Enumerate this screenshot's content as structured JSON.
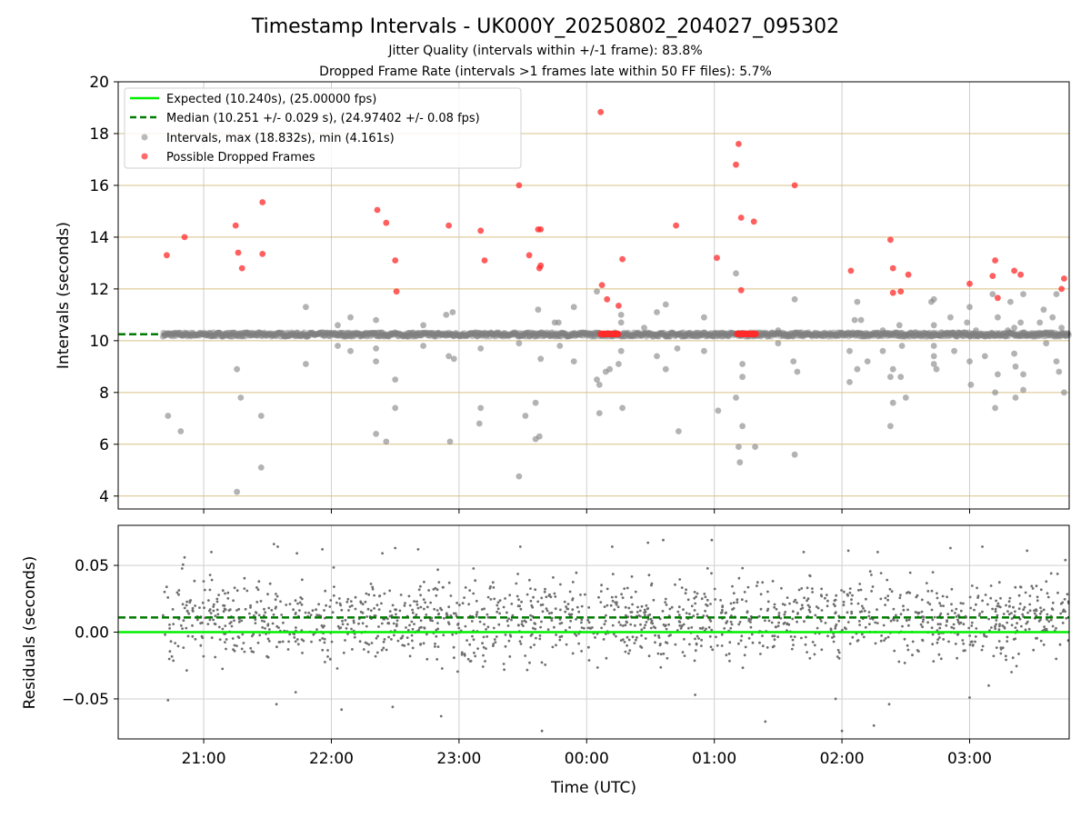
{
  "title": "Timestamp Intervals - UK000Y_20250802_204027_095302",
  "subtitle_1": "Jitter Quality (intervals within +/-1 frame): 83.8%",
  "subtitle_2": "Dropped Frame Rate (intervals >1 frames late within 50 FF files): 5.7%",
  "colors": {
    "expected": "#00ee00",
    "median": "#007a00",
    "intervals": "#808080",
    "dropped": "#ff2a2a",
    "hgrid_top": "#d6c184",
    "grid": "#cfcfcf",
    "residual_points": "#6e6e6e"
  },
  "chart_data": [
    {
      "type": "scatter",
      "ylabel": "Intervals (seconds)",
      "ylim": [
        3.5,
        20
      ],
      "y_ticks": [
        "4",
        "6",
        "8",
        "10",
        "12",
        "14",
        "16",
        "18",
        "20"
      ],
      "y_tick_values": [
        4,
        6,
        8,
        10,
        12,
        14,
        16,
        18,
        20
      ],
      "x_ticks": [
        "21:00",
        "22:00",
        "23:00",
        "00:00",
        "01:00",
        "02:00",
        "03:00"
      ],
      "xlim_hours": [
        20.33,
        27.78
      ],
      "grid": true,
      "legend_position": "top-left",
      "legend": [
        "Expected (10.240s), (25.00000 fps)",
        "Median (10.251 +/- 0.029 s), (24.97402 +/- 0.08 fps)",
        "Intervals, max (18.832s), min (4.161s)",
        "Possible Dropped Frames"
      ],
      "expected_interval": 10.24,
      "median_interval": 10.251,
      "series": [
        {
          "name": "Intervals, max (18.832s), min (4.161s)",
          "points": [
            [
              20.72,
              7.1
            ],
            [
              20.82,
              6.5
            ],
            [
              21.26,
              8.9
            ],
            [
              21.26,
              4.16
            ],
            [
              21.29,
              7.8
            ],
            [
              21.45,
              7.1
            ],
            [
              21.45,
              5.1
            ],
            [
              21.8,
              11.3
            ],
            [
              21.8,
              9.1
            ],
            [
              22.05,
              10.6
            ],
            [
              22.05,
              9.8
            ],
            [
              22.15,
              10.9
            ],
            [
              22.15,
              9.6
            ],
            [
              22.35,
              10.8
            ],
            [
              22.35,
              9.7
            ],
            [
              22.35,
              9.2
            ],
            [
              22.35,
              6.4
            ],
            [
              22.43,
              6.1
            ],
            [
              22.5,
              8.5
            ],
            [
              22.5,
              7.4
            ],
            [
              22.72,
              10.6
            ],
            [
              22.72,
              9.8
            ],
            [
              22.9,
              11.0
            ],
            [
              22.92,
              9.4
            ],
            [
              22.93,
              6.1
            ],
            [
              22.95,
              11.1
            ],
            [
              22.96,
              9.3
            ],
            [
              23.17,
              7.4
            ],
            [
              23.16,
              6.8
            ],
            [
              23.17,
              9.7
            ],
            [
              23.47,
              9.9
            ],
            [
              23.47,
              4.76
            ],
            [
              23.52,
              7.1
            ],
            [
              23.6,
              7.6
            ],
            [
              23.6,
              6.2
            ],
            [
              23.62,
              11.2
            ],
            [
              23.63,
              6.3
            ],
            [
              23.64,
              9.3
            ],
            [
              23.75,
              10.7
            ],
            [
              23.78,
              10.7
            ],
            [
              23.79,
              9.8
            ],
            [
              23.9,
              11.3
            ],
            [
              23.9,
              9.2
            ],
            [
              24.08,
              11.9
            ],
            [
              24.08,
              8.5
            ],
            [
              24.1,
              8.3
            ],
            [
              24.1,
              7.2
            ],
            [
              24.15,
              8.8
            ],
            [
              24.18,
              8.9
            ],
            [
              24.25,
              9.1
            ],
            [
              24.27,
              11.0
            ],
            [
              24.27,
              10.7
            ],
            [
              24.27,
              9.6
            ],
            [
              24.28,
              7.4
            ],
            [
              24.45,
              10.5
            ],
            [
              24.55,
              11.1
            ],
            [
              24.55,
              9.4
            ],
            [
              24.62,
              11.4
            ],
            [
              24.62,
              8.9
            ],
            [
              24.71,
              9.7
            ],
            [
              24.72,
              6.5
            ],
            [
              24.92,
              10.9
            ],
            [
              24.92,
              9.6
            ],
            [
              25.03,
              7.3
            ],
            [
              25.17,
              12.6
            ],
            [
              25.17,
              7.8
            ],
            [
              25.19,
              5.9
            ],
            [
              25.2,
              5.3
            ],
            [
              25.22,
              9.1
            ],
            [
              25.22,
              8.6
            ],
            [
              25.22,
              6.7
            ],
            [
              25.32,
              5.9
            ],
            [
              25.5,
              10.4
            ],
            [
              25.5,
              9.9
            ],
            [
              25.62,
              9.2
            ],
            [
              25.63,
              11.6
            ],
            [
              25.63,
              5.6
            ],
            [
              25.65,
              8.8
            ],
            [
              26.06,
              9.6
            ],
            [
              26.06,
              8.4
            ],
            [
              26.1,
              10.8
            ],
            [
              26.12,
              11.5
            ],
            [
              26.12,
              8.9
            ],
            [
              26.15,
              10.8
            ],
            [
              26.2,
              9.2
            ],
            [
              26.32,
              10.4
            ],
            [
              26.32,
              9.6
            ],
            [
              26.38,
              8.6
            ],
            [
              26.38,
              6.7
            ],
            [
              26.4,
              8.9
            ],
            [
              26.4,
              7.6
            ],
            [
              26.45,
              10.6
            ],
            [
              26.46,
              8.6
            ],
            [
              26.47,
              9.8
            ],
            [
              26.5,
              7.8
            ],
            [
              26.7,
              11.5
            ],
            [
              26.72,
              11.6
            ],
            [
              26.72,
              10.6
            ],
            [
              26.72,
              9.8
            ],
            [
              26.72,
              9.4
            ],
            [
              26.72,
              9.1
            ],
            [
              26.74,
              8.9
            ],
            [
              26.85,
              10.9
            ],
            [
              26.88,
              9.6
            ],
            [
              26.98,
              10.7
            ],
            [
              27.0,
              11.3
            ],
            [
              27.0,
              9.2
            ],
            [
              27.01,
              8.3
            ],
            [
              27.05,
              10.4
            ],
            [
              27.12,
              9.4
            ],
            [
              27.18,
              11.8
            ],
            [
              27.2,
              8.0
            ],
            [
              27.2,
              7.4
            ],
            [
              27.22,
              10.9
            ],
            [
              27.22,
              8.7
            ],
            [
              27.3,
              10.4
            ],
            [
              27.32,
              11.5
            ],
            [
              27.35,
              10.5
            ],
            [
              27.35,
              9.5
            ],
            [
              27.36,
              9.0
            ],
            [
              27.36,
              7.8
            ],
            [
              27.4,
              10.7
            ],
            [
              27.42,
              11.8
            ],
            [
              27.42,
              8.7
            ],
            [
              27.42,
              8.1
            ],
            [
              27.55,
              10.7
            ],
            [
              27.58,
              11.2
            ],
            [
              27.6,
              9.9
            ],
            [
              27.65,
              10.9
            ],
            [
              27.68,
              11.8
            ],
            [
              27.68,
              9.2
            ],
            [
              27.7,
              8.8
            ],
            [
              27.72,
              10.5
            ],
            [
              27.74,
              8.0
            ]
          ]
        },
        {
          "name": "Possible Dropped Frames",
          "points": [
            [
              20.71,
              13.3
            ],
            [
              20.85,
              14.0
            ],
            [
              21.25,
              14.45
            ],
            [
              21.27,
              13.4
            ],
            [
              21.3,
              12.8
            ],
            [
              21.46,
              15.35
            ],
            [
              21.46,
              13.35
            ],
            [
              22.36,
              15.05
            ],
            [
              22.43,
              14.55
            ],
            [
              22.5,
              13.1
            ],
            [
              22.51,
              11.9
            ],
            [
              22.92,
              14.45
            ],
            [
              23.17,
              14.25
            ],
            [
              23.2,
              13.1
            ],
            [
              23.47,
              16.0
            ],
            [
              23.55,
              13.3
            ],
            [
              23.62,
              14.3
            ],
            [
              23.64,
              14.3
            ],
            [
              23.64,
              12.9
            ],
            [
              23.63,
              12.8
            ],
            [
              24.11,
              18.83
            ],
            [
              24.12,
              12.15
            ],
            [
              24.16,
              11.6
            ],
            [
              24.25,
              11.35
            ],
            [
              24.28,
              13.15
            ],
            [
              24.7,
              14.45
            ],
            [
              25.02,
              13.2
            ],
            [
              25.17,
              16.8
            ],
            [
              25.19,
              17.6
            ],
            [
              25.21,
              14.75
            ],
            [
              25.21,
              11.95
            ],
            [
              25.31,
              14.6
            ],
            [
              25.63,
              16.0
            ],
            [
              26.07,
              12.7
            ],
            [
              26.38,
              13.9
            ],
            [
              26.4,
              12.8
            ],
            [
              26.4,
              11.85
            ],
            [
              26.46,
              11.9
            ],
            [
              26.52,
              12.55
            ],
            [
              27.0,
              12.2
            ],
            [
              27.2,
              13.1
            ],
            [
              27.18,
              12.5
            ],
            [
              27.22,
              11.65
            ],
            [
              27.35,
              12.7
            ],
            [
              27.4,
              12.55
            ],
            [
              27.74,
              12.4
            ],
            [
              27.72,
              12.0
            ]
          ]
        }
      ]
    },
    {
      "type": "scatter",
      "xlabel": "Time (UTC)",
      "ylabel": "Residuals (seconds)",
      "ylim": [
        -0.08,
        0.08
      ],
      "y_ticks": [
        "0.05",
        "0.00",
        "−0.05"
      ],
      "y_tick_values": [
        0.05,
        0.0,
        -0.05
      ],
      "x_ticks": [
        "21:00",
        "22:00",
        "23:00",
        "00:00",
        "01:00",
        "02:00",
        "03:00"
      ],
      "xlim_hours": [
        20.33,
        27.78
      ],
      "expected_residual": 0.0,
      "median_residual": 0.011,
      "series": [
        {
          "name": "Residuals",
          "points": [
            [
              20.85,
              0.056
            ],
            [
              21.06,
              0.06
            ],
            [
              21.55,
              0.066
            ],
            [
              21.58,
              0.064
            ],
            [
              21.73,
              0.059
            ],
            [
              21.93,
              0.062
            ],
            [
              22.4,
              0.059
            ],
            [
              22.5,
              0.063
            ],
            [
              22.68,
              0.062
            ],
            [
              23.48,
              0.064
            ],
            [
              24.2,
              0.064
            ],
            [
              24.48,
              0.067
            ],
            [
              24.6,
              0.069
            ],
            [
              24.98,
              0.069
            ],
            [
              25.7,
              0.06
            ],
            [
              26.05,
              0.061
            ],
            [
              26.28,
              0.06
            ],
            [
              26.85,
              0.063
            ],
            [
              27.1,
              0.064
            ],
            [
              27.45,
              0.061
            ],
            [
              27.75,
              0.054
            ],
            [
              20.72,
              -0.051
            ],
            [
              21.57,
              -0.054
            ],
            [
              21.72,
              -0.045
            ],
            [
              22.08,
              -0.058
            ],
            [
              22.48,
              -0.056
            ],
            [
              22.86,
              -0.063
            ],
            [
              23.65,
              -0.074
            ],
            [
              24.85,
              -0.047
            ],
            [
              25.4,
              -0.067
            ],
            [
              25.95,
              -0.05
            ],
            [
              26.0,
              -0.074
            ],
            [
              26.25,
              -0.07
            ],
            [
              26.37,
              -0.054
            ],
            [
              27.0,
              -0.049
            ],
            [
              27.15,
              -0.04
            ]
          ],
          "band": {
            "center": 0.009,
            "spread": 0.028,
            "x_from": 20.68,
            "x_to": 27.78,
            "count": 1500
          }
        }
      ]
    }
  ]
}
